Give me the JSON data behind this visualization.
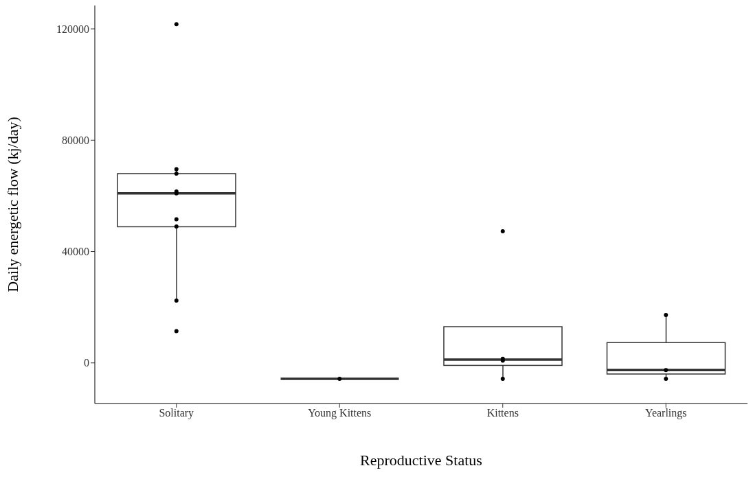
{
  "chart_data": {
    "type": "box",
    "xlabel": "Reproductive Status",
    "ylabel": "Daily energetic flow (kj/day)",
    "categories": [
      "Solitary",
      "Young Kittens",
      "Kittens",
      "Yearlings"
    ],
    "color": "#333333",
    "boxes": [
      {
        "low": 22400,
        "q1": 48900,
        "median": 60900,
        "q3": 68000,
        "high": 69600
      },
      {
        "low": -5700,
        "q1": -5700,
        "median": -5700,
        "q3": -5700,
        "high": -5700
      },
      {
        "low": -5700,
        "q1": -900,
        "median": 1200,
        "q3": 13000,
        "high": 13000
      },
      {
        "low": -5700,
        "q1": -4000,
        "median": -2600,
        "q3": 7300,
        "high": 17200
      }
    ],
    "series": [
      {
        "type": "scatter",
        "color": "#000000",
        "x": [
          "Solitary",
          "Solitary",
          "Solitary",
          "Solitary",
          "Solitary",
          "Solitary",
          "Solitary",
          "Solitary",
          "Solitary",
          "Young Kittens",
          "Kittens",
          "Kittens",
          "Kittens",
          "Kittens",
          "Yearlings",
          "Yearlings",
          "Yearlings"
        ],
        "values": [
          121700,
          69600,
          68000,
          61600,
          60900,
          51600,
          49000,
          22400,
          11400,
          -5700,
          47300,
          1500,
          800,
          -5700,
          17200,
          -2600,
          -5700
        ]
      }
    ],
    "ylim": [
      -14600,
      128400
    ],
    "yticks": [
      0,
      40000,
      80000,
      120000
    ]
  }
}
